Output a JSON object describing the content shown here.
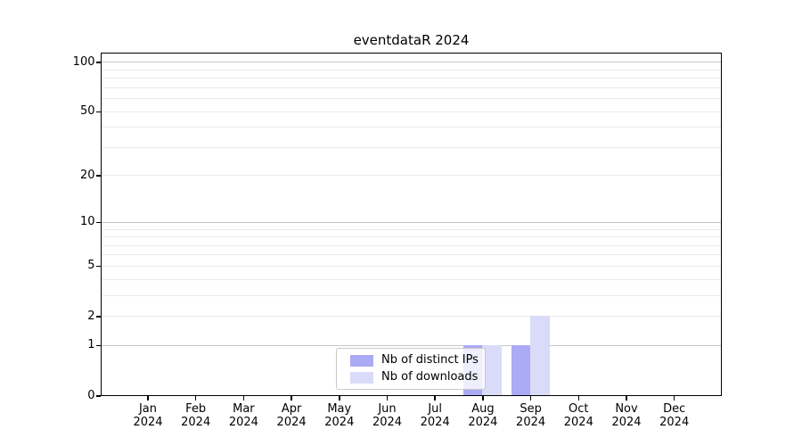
{
  "chart_data": {
    "type": "bar",
    "title": "eventdataR 2024",
    "categories": [
      "Jan",
      "Feb",
      "Mar",
      "Apr",
      "May",
      "Jun",
      "Jul",
      "Aug",
      "Sep",
      "Oct",
      "Nov",
      "Dec"
    ],
    "category_year": "2024",
    "series": [
      {
        "name": "Nb of distinct IPs",
        "color": "#abaaf5",
        "values": [
          0,
          0,
          0,
          0,
          0,
          0,
          0,
          1,
          1,
          0,
          0,
          0
        ]
      },
      {
        "name": "Nb of downloads",
        "color": "#dadaf9",
        "values": [
          0,
          0,
          0,
          0,
          0,
          0,
          0,
          1,
          2,
          0,
          0,
          0
        ]
      }
    ],
    "y_axis": {
      "scale": "log1p",
      "tick_labels": [
        100,
        50,
        20,
        10,
        5,
        2,
        1,
        0
      ],
      "major_gridlines": [
        1,
        10,
        100
      ],
      "minor_gridlines": [
        2,
        3,
        4,
        5,
        6,
        7,
        8,
        9,
        20,
        30,
        40,
        50,
        60,
        70,
        80,
        90
      ],
      "ylim": [
        0,
        113
      ]
    },
    "legend_position": "bottom-center",
    "grid": true,
    "colors": {
      "major_grid": "#c6c6c6",
      "minor_grid": "#eaeaea",
      "spine": "#000000",
      "background": "#ffffff"
    }
  }
}
